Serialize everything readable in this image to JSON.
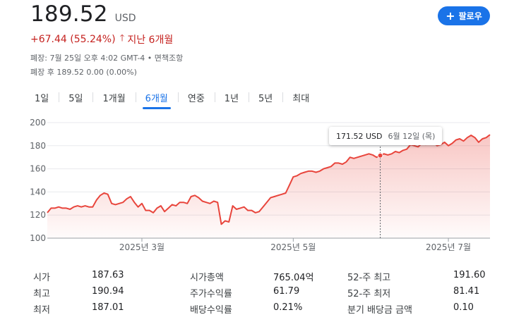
{
  "quote": {
    "price": "189.52",
    "currency": "USD",
    "change": "+67.44 (55.24%)",
    "change_arrow": "🡑",
    "period": "지난 6개월",
    "meta_line1": "폐장: 7월 25일 오후 4:02 GMT-4 • 면책조항",
    "meta_line2": "폐장 후 189.52 0.00 (0.00%)"
  },
  "follow_button": {
    "label": "팔로우",
    "icon": "plus-icon"
  },
  "tabs": [
    {
      "label": "1일",
      "active": false
    },
    {
      "label": "5일",
      "active": false
    },
    {
      "label": "1개월",
      "active": false
    },
    {
      "label": "6개월",
      "active": true
    },
    {
      "label": "연중",
      "active": false
    },
    {
      "label": "1년",
      "active": false
    },
    {
      "label": "5년",
      "active": false
    },
    {
      "label": "최대",
      "active": false
    }
  ],
  "colors": {
    "accent": "#1a73e8",
    "negative_red": "#c5221f",
    "line_red": "#e8453c"
  },
  "tooltip": {
    "price": "171.52 USD",
    "date": "6월 12일 (목)"
  },
  "chart_data": {
    "type": "area",
    "title": "",
    "xlabel": "",
    "ylabel": "",
    "ylim": [
      100,
      200
    ],
    "yticks": [
      "200",
      "180",
      "160",
      "140",
      "120",
      "100"
    ],
    "xticks": [
      {
        "label": "2025년 3월",
        "index": 25
      },
      {
        "label": "2025년 5월",
        "index": 65
      },
      {
        "label": "2025년 7월",
        "index": 106
      }
    ],
    "hover_index": 88,
    "values": [
      122,
      126,
      126,
      127,
      126,
      126,
      125,
      127,
      128,
      127,
      128,
      127,
      127,
      133,
      137,
      139,
      138,
      130,
      129,
      130,
      131,
      134,
      136,
      131,
      127,
      130,
      124,
      124,
      122,
      126,
      128,
      123,
      126,
      129,
      128,
      131,
      131,
      130,
      136,
      137,
      135,
      132,
      131,
      130,
      132,
      131,
      112,
      115,
      114,
      128,
      125,
      126,
      127,
      124,
      124,
      122,
      123,
      127,
      131,
      135,
      136,
      137,
      138,
      139,
      146,
      153,
      154,
      156,
      157,
      158,
      158,
      157,
      158,
      160,
      161,
      162,
      165,
      165,
      164,
      166,
      170,
      169,
      170,
      171,
      172,
      173,
      172,
      170,
      171.52,
      173,
      172,
      173,
      175,
      174,
      176,
      177,
      181,
      180,
      179,
      182,
      181,
      184,
      183,
      180,
      181,
      183,
      180,
      182,
      185,
      186,
      184,
      187,
      189,
      187,
      183,
      186,
      187,
      189.52
    ]
  },
  "stats": [
    {
      "label": "시가",
      "value": "187.63"
    },
    {
      "label": "최고",
      "value": "190.94"
    },
    {
      "label": "최저",
      "value": "187.01"
    },
    {
      "label": "시가총액",
      "value": "765.04억"
    },
    {
      "label": "주가수익률",
      "value": "61.79"
    },
    {
      "label": "배당수익률",
      "value": "0.21%"
    },
    {
      "label": "52-주 최고",
      "value": "191.60"
    },
    {
      "label": "52-주 최저",
      "value": "81.41"
    },
    {
      "label": "분기 배당금 금액",
      "value": "0.10"
    }
  ]
}
